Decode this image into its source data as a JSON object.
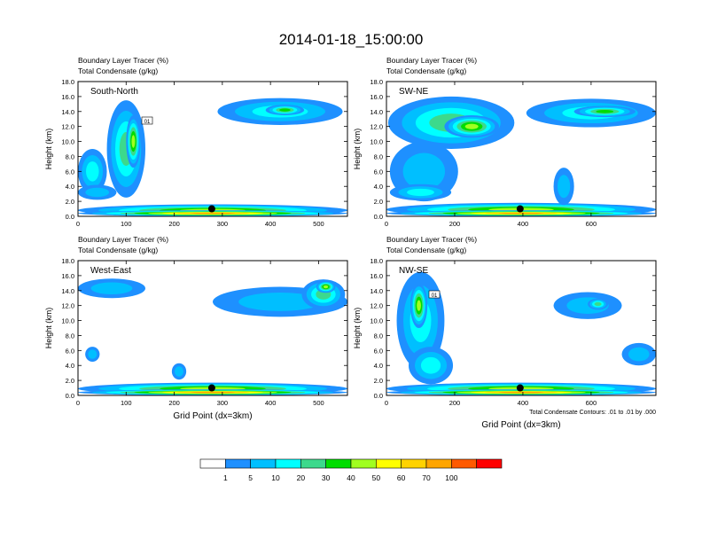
{
  "page_title": "2014-01-18_15:00:00",
  "chart_data": [
    {
      "type": "heatmap",
      "title_line1": "Boundary Layer Tracer   (%)",
      "title_line2": "Total Condensate   (g/kg)",
      "label": "South-North",
      "ylabel": "Height (km)",
      "xlabel": "",
      "xlim": [
        0,
        560
      ],
      "ylim": [
        0,
        18
      ],
      "x_ticks": [
        0,
        100,
        200,
        300,
        400,
        500
      ],
      "y_ticks": [
        "0.0",
        "2.0",
        "4.0",
        "6.0",
        "8.0",
        "10.0",
        "12.0",
        "14.0",
        "16.0",
        "18.0"
      ],
      "marker": {
        "x": 278,
        "y": 1.0
      },
      "contour_label": "01",
      "blobs": [
        {
          "x": 280,
          "y": 0.8,
          "w": 560,
          "h": 1.6,
          "level": 6
        },
        {
          "x": 280,
          "y": 0.4,
          "w": 560,
          "h": 0.8,
          "level": 9
        },
        {
          "x": 100,
          "y": 9.0,
          "w": 80,
          "h": 13.0,
          "level": 4
        },
        {
          "x": 115,
          "y": 10.0,
          "w": 30,
          "h": 7.0,
          "level": 6
        },
        {
          "x": 30,
          "y": 6.0,
          "w": 60,
          "h": 6.0,
          "level": 3
        },
        {
          "x": 40,
          "y": 3.2,
          "w": 80,
          "h": 2.0,
          "level": 2
        },
        {
          "x": 420,
          "y": 14.0,
          "w": 260,
          "h": 3.6,
          "level": 3
        },
        {
          "x": 430,
          "y": 14.2,
          "w": 80,
          "h": 1.4,
          "level": 5
        }
      ]
    },
    {
      "type": "heatmap",
      "title_line1": "Boundary Layer Tracer   (%)",
      "title_line2": "Total Condensate   (g/kg)",
      "label": "SW-NE",
      "ylabel": "Height (km)",
      "xlabel": "",
      "xlim": [
        0,
        790
      ],
      "ylim": [
        0,
        18
      ],
      "x_ticks": [
        0,
        200,
        400,
        600
      ],
      "y_ticks": [
        "0.0",
        "2.0",
        "4.0",
        "6.0",
        "8.0",
        "10.0",
        "12.0",
        "14.0",
        "16.0",
        "18.0"
      ],
      "marker": {
        "x": 392,
        "y": 1.0
      },
      "contour_label": "",
      "blobs": [
        {
          "x": 395,
          "y": 0.9,
          "w": 790,
          "h": 1.8,
          "level": 6
        },
        {
          "x": 395,
          "y": 0.4,
          "w": 790,
          "h": 0.8,
          "level": 9
        },
        {
          "x": 190,
          "y": 12.5,
          "w": 370,
          "h": 7.0,
          "level": 4
        },
        {
          "x": 110,
          "y": 6.0,
          "w": 200,
          "h": 8.0,
          "level": 2
        },
        {
          "x": 100,
          "y": 3.2,
          "w": 180,
          "h": 2.2,
          "level": 3
        },
        {
          "x": 520,
          "y": 4.0,
          "w": 60,
          "h": 5.0,
          "level": 2
        },
        {
          "x": 600,
          "y": 13.8,
          "w": 380,
          "h": 3.8,
          "level": 3
        },
        {
          "x": 640,
          "y": 14.0,
          "w": 180,
          "h": 1.5,
          "level": 5
        },
        {
          "x": 250,
          "y": 12.0,
          "w": 160,
          "h": 3.0,
          "level": 6
        }
      ]
    },
    {
      "type": "heatmap",
      "title_line1": "Boundary Layer Tracer   (%)",
      "title_line2": "Total Condensate   (g/kg)",
      "label": "West-East",
      "ylabel": "Height (km)",
      "xlabel": "Grid Point (dx=3km)",
      "xlim": [
        0,
        560
      ],
      "ylim": [
        0,
        18
      ],
      "x_ticks": [
        0,
        100,
        200,
        300,
        400,
        500
      ],
      "y_ticks": [
        "0.0",
        "2.0",
        "4.0",
        "6.0",
        "8.0",
        "10.0",
        "12.0",
        "14.0",
        "16.0",
        "18.0"
      ],
      "marker": {
        "x": 278,
        "y": 1.0
      },
      "contour_label": "",
      "blobs": [
        {
          "x": 280,
          "y": 0.9,
          "w": 560,
          "h": 1.6,
          "level": 6
        },
        {
          "x": 280,
          "y": 0.4,
          "w": 560,
          "h": 0.8,
          "level": 9
        },
        {
          "x": 70,
          "y": 14.3,
          "w": 140,
          "h": 2.6,
          "level": 2
        },
        {
          "x": 420,
          "y": 12.5,
          "w": 280,
          "h": 4.0,
          "level": 2
        },
        {
          "x": 510,
          "y": 13.5,
          "w": 90,
          "h": 4.0,
          "level": 4
        },
        {
          "x": 515,
          "y": 14.5,
          "w": 40,
          "h": 1.6,
          "level": 6
        },
        {
          "x": 30,
          "y": 5.5,
          "w": 30,
          "h": 2.0,
          "level": 2
        },
        {
          "x": 210,
          "y": 3.2,
          "w": 30,
          "h": 2.2,
          "level": 2
        }
      ]
    },
    {
      "type": "heatmap",
      "title_line1": "Boundary Layer Tracer   (%)",
      "title_line2": "Total Condensate   (g/kg)",
      "label": "NW-SE",
      "ylabel": "Height (km)",
      "xlabel": "Grid Point (dx=3km)",
      "xlim": [
        0,
        790
      ],
      "ylim": [
        0,
        18
      ],
      "x_ticks": [
        0,
        200,
        400,
        600
      ],
      "y_ticks": [
        "0.0",
        "2.0",
        "4.0",
        "6.0",
        "8.0",
        "10.0",
        "12.0",
        "14.0",
        "16.0",
        "18.0"
      ],
      "marker": {
        "x": 392,
        "y": 1.0
      },
      "contour_label": "01",
      "footnote": "Total Condensate Contours: .01 to .01 by .000",
      "blobs": [
        {
          "x": 395,
          "y": 0.9,
          "w": 790,
          "h": 1.6,
          "level": 6
        },
        {
          "x": 395,
          "y": 0.4,
          "w": 790,
          "h": 0.8,
          "level": 9
        },
        {
          "x": 100,
          "y": 10.0,
          "w": 140,
          "h": 13.0,
          "level": 3
        },
        {
          "x": 95,
          "y": 12.0,
          "w": 50,
          "h": 6.0,
          "level": 6
        },
        {
          "x": 130,
          "y": 4.0,
          "w": 130,
          "h": 5.0,
          "level": 3
        },
        {
          "x": 590,
          "y": 12.0,
          "w": 200,
          "h": 3.6,
          "level": 2
        },
        {
          "x": 620,
          "y": 12.2,
          "w": 60,
          "h": 1.5,
          "level": 4
        },
        {
          "x": 740,
          "y": 5.5,
          "w": 100,
          "h": 3.0,
          "level": 2
        }
      ]
    }
  ],
  "colorbar": {
    "labels": [
      "1",
      "5",
      "10",
      "20",
      "30",
      "40",
      "50",
      "60",
      "70",
      "100"
    ],
    "colors": [
      "#ffffff",
      "#1e90ff",
      "#00bfff",
      "#00ffff",
      "#3cd98c",
      "#00dd00",
      "#a0ff20",
      "#ffff00",
      "#ffd200",
      "#ffa500",
      "#ff5a00",
      "#ff0000"
    ]
  }
}
